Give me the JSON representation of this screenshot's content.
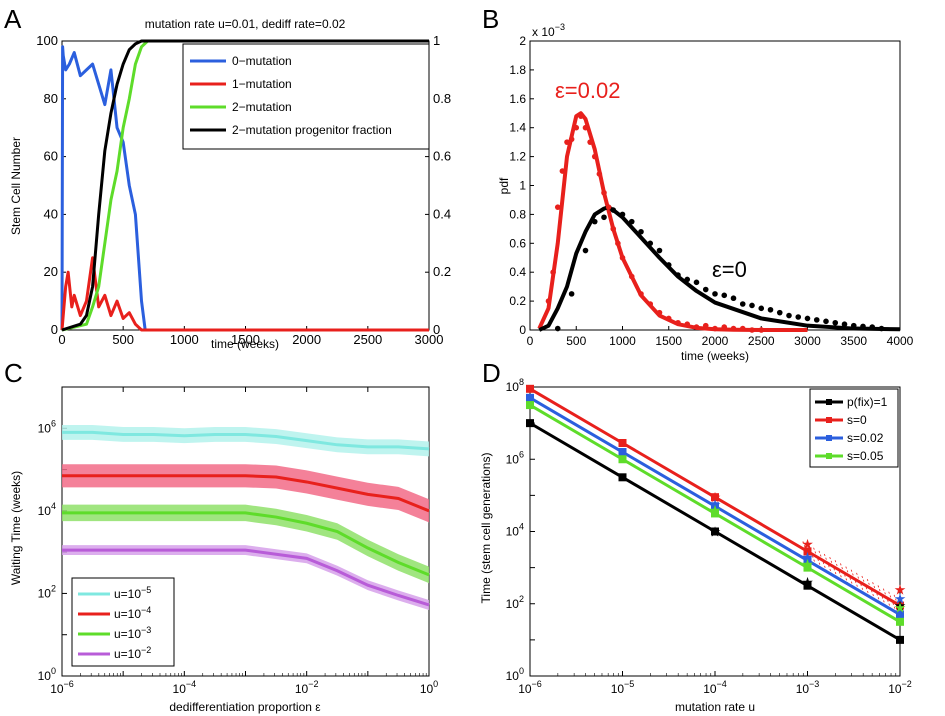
{
  "panels": {
    "A": {
      "label": "A",
      "title": "mutation rate u=0.01, dediff rate=0.02",
      "xlabel": "time (weeks)",
      "ylabel": "Stem Cell Number",
      "xticks": [
        "0",
        "500",
        "1000",
        "1500",
        "2000",
        "2500",
        "3000"
      ],
      "yticks_left": [
        "0",
        "20",
        "40",
        "60",
        "80",
        "100"
      ],
      "yticks_right": [
        "0",
        "0.2",
        "0.4",
        "0.6",
        "0.8",
        "1"
      ],
      "legend": [
        "0−mutation",
        "1−mutation",
        "2−mutation",
        "2−mutation progenitor fraction"
      ]
    },
    "B": {
      "label": "B",
      "xlabel": "time (weeks)",
      "ylabel": "pdf",
      "xticks": [
        "0",
        "500",
        "1000",
        "1500",
        "2000",
        "2500",
        "3000",
        "3500",
        "4000"
      ],
      "yticks": [
        "0",
        "0.2",
        "0.4",
        "0.6",
        "0.8",
        "1",
        "1.2",
        "1.4",
        "1.6",
        "1.8",
        "2"
      ],
      "yscale_base": "x 10",
      "yscale_exp": "−3",
      "annotation_red": "ε=0.02",
      "annotation_black": "ε=0"
    },
    "C": {
      "label": "C",
      "xlabel": "dedifferentiation proportion  ε",
      "ylabel": "Waiting Time (weeks)",
      "legend": [
        {
          "base": "u=10",
          "exp": "−5"
        },
        {
          "base": "u=10",
          "exp": "−4"
        },
        {
          "base": "u=10",
          "exp": "−3"
        },
        {
          "base": "u=10",
          "exp": "−2"
        }
      ]
    },
    "D": {
      "label": "D",
      "xlabel": "mutation rate u",
      "ylabel": "Time (stem cell generations)",
      "legend": [
        "p(fix)=1",
        "s=0",
        "s=0.02",
        "s=0.05"
      ]
    }
  },
  "colors": {
    "blue": "#2b5fde",
    "red": "#e8201c",
    "green": "#5edc2a",
    "black": "#000000",
    "cyan": "#7fe8e0",
    "purple": "#b85cd8"
  },
  "chart_data": [
    {
      "panel": "A",
      "type": "line",
      "title": "mutation rate u=0.01, dediff rate=0.02",
      "xlabel": "time (weeks)",
      "ylabel": "Stem Cell Number",
      "xlim": [
        0,
        3000
      ],
      "ylim": [
        0,
        100
      ],
      "y2lim": [
        0,
        1
      ],
      "series": [
        {
          "name": "0-mutation",
          "color": "blue",
          "x": [
            0,
            5,
            10,
            30,
            60,
            100,
            150,
            200,
            250,
            300,
            350,
            400,
            450,
            500,
            550,
            600,
            650,
            680,
            3000
          ],
          "y": [
            0,
            98,
            95,
            90,
            92,
            96,
            88,
            90,
            92,
            85,
            78,
            90,
            70,
            65,
            50,
            40,
            10,
            0,
            0
          ]
        },
        {
          "name": "1-mutation",
          "color": "red",
          "x": [
            0,
            10,
            30,
            50,
            80,
            100,
            150,
            200,
            250,
            300,
            350,
            400,
            450,
            500,
            550,
            600,
            650,
            3000
          ],
          "y": [
            0,
            5,
            15,
            20,
            8,
            12,
            5,
            10,
            25,
            8,
            12,
            5,
            10,
            4,
            6,
            2,
            0,
            0
          ]
        },
        {
          "name": "2-mutation",
          "color": "green",
          "x": [
            0,
            200,
            250,
            300,
            350,
            400,
            450,
            500,
            550,
            600,
            650,
            700,
            3000
          ],
          "y": [
            0,
            2,
            8,
            15,
            30,
            45,
            55,
            70,
            80,
            92,
            98,
            100,
            100
          ]
        },
        {
          "name": "2-mutation progenitor fraction",
          "color": "black",
          "axis": "right",
          "x": [
            0,
            150,
            200,
            250,
            300,
            350,
            400,
            450,
            500,
            550,
            600,
            650,
            3000
          ],
          "y": [
            0,
            0.02,
            0.05,
            0.15,
            0.4,
            0.62,
            0.75,
            0.85,
            0.92,
            0.97,
            0.99,
            1,
            1
          ]
        }
      ]
    },
    {
      "panel": "B",
      "type": "line",
      "xlabel": "time (weeks)",
      "ylabel": "pdf",
      "xlim": [
        0,
        4000
      ],
      "ylim": [
        0,
        0.002
      ],
      "series": [
        {
          "name": "ε=0.02",
          "color": "red",
          "x": [
            100,
            200,
            300,
            400,
            500,
            550,
            600,
            700,
            800,
            900,
            1000,
            1200,
            1400,
            1600,
            1800,
            2000,
            2200,
            2500,
            3000
          ],
          "y": [
            1e-05,
            0.00015,
            0.0006,
            0.0012,
            0.00148,
            0.0015,
            0.00146,
            0.00125,
            0.00095,
            0.0007,
            0.0005,
            0.00024,
            0.0001,
            4e-05,
            1.5e-05,
            5e-06,
            2e-06,
            0,
            0
          ]
        },
        {
          "name": "ε=0",
          "color": "black",
          "x": [
            100,
            200,
            300,
            400,
            500,
            600,
            700,
            800,
            850,
            900,
            1000,
            1200,
            1400,
            1600,
            1800,
            2000,
            2500,
            3000,
            3500,
            4000
          ],
          "y": [
            0,
            3e-05,
            0.00015,
            0.0003,
            0.00053,
            0.00068,
            0.0008,
            0.00084,
            0.00085,
            0.00083,
            0.00078,
            0.00064,
            0.0005,
            0.00037,
            0.00027,
            0.00019,
            8e-05,
            3e-05,
            1e-05,
            5e-06
          ]
        },
        {
          "name": "ε=0.02 (simulation points)",
          "color": "red",
          "marker": "dot",
          "x": [
            200,
            250,
            300,
            350,
            400,
            450,
            500,
            550,
            600,
            650,
            700,
            750,
            800,
            850,
            900,
            950,
            1000,
            1100,
            1200,
            1300,
            1400,
            1500,
            1600,
            1700,
            1800,
            1900,
            2000,
            2100,
            2200,
            2300,
            2400,
            2500
          ],
          "y": [
            0.0002,
            0.0004,
            0.00085,
            0.0011,
            0.0013,
            0.00132,
            0.0014,
            0.00148,
            0.0014,
            0.0013,
            0.0012,
            0.00108,
            0.00095,
            0.00085,
            0.0007,
            0.0006,
            0.0005,
            0.00037,
            0.00025,
            0.00018,
            0.00012,
            8e-05,
            5e-05,
            4e-05,
            2e-05,
            3e-05,
            1e-05,
            2e-05,
            1e-05,
            1e-05,
            0,
            0
          ]
        },
        {
          "name": "ε=0 (simulation points)",
          "color": "black",
          "marker": "dot",
          "x": [
            300,
            450,
            600,
            700,
            800,
            900,
            1000,
            1100,
            1200,
            1300,
            1400,
            1500,
            1600,
            1700,
            1800,
            1900,
            2000,
            2100,
            2200,
            2300,
            2400,
            2500,
            2600,
            2700,
            2800,
            2900,
            3000,
            3100,
            3200,
            3300,
            3400,
            3500,
            3600,
            3700,
            3800
          ],
          "y": [
            1e-05,
            0.00025,
            0.00055,
            0.00075,
            0.00078,
            0.00083,
            0.0008,
            0.00075,
            0.00068,
            0.0006,
            0.00055,
            0.00045,
            0.00038,
            0.00035,
            0.00033,
            0.00028,
            0.00025,
            0.00024,
            0.00022,
            0.00018,
            0.00017,
            0.00015,
            0.00014,
            0.00012,
            0.0001,
            9e-05,
            8e-05,
            7e-05,
            6e-05,
            5e-05,
            4e-05,
            3e-05,
            2.5e-05,
            2e-05,
            1e-05
          ]
        }
      ]
    },
    {
      "panel": "C",
      "type": "line",
      "xscale": "log",
      "yscale": "log",
      "xlabel": "dedifferentiation proportion  ε",
      "ylabel": "Waiting Time (weeks)",
      "xlim_log10": [
        -6,
        0
      ],
      "ylim_log10": [
        0,
        7
      ],
      "x_log10": [
        -6,
        -5.5,
        -5,
        -4.5,
        -4,
        -3.5,
        -3,
        -2.5,
        -2,
        -1.5,
        -1,
        -0.5,
        0
      ],
      "series": [
        {
          "name": "u=10^-5",
          "color": "cyan",
          "log10_y": [
            5.9,
            5.9,
            5.85,
            5.85,
            5.82,
            5.85,
            5.85,
            5.8,
            5.7,
            5.6,
            5.55,
            5.55,
            5.5
          ],
          "band": 0.18
        },
        {
          "name": "u=10^-4",
          "color": "red",
          "log10_y": [
            4.85,
            4.85,
            4.85,
            4.85,
            4.85,
            4.85,
            4.85,
            4.82,
            4.7,
            4.55,
            4.4,
            4.3,
            4.0
          ],
          "band": 0.28
        },
        {
          "name": "u=10^-3",
          "color": "green",
          "log10_y": [
            3.95,
            3.95,
            3.95,
            3.95,
            3.95,
            3.95,
            3.95,
            3.85,
            3.7,
            3.5,
            3.1,
            2.75,
            2.45
          ],
          "band": 0.2
        },
        {
          "name": "u=10^-2",
          "color": "purple",
          "log10_y": [
            3.05,
            3.05,
            3.05,
            3.05,
            3.05,
            3.05,
            3.05,
            2.95,
            2.85,
            2.55,
            2.2,
            1.95,
            1.72
          ],
          "band": 0.12
        }
      ]
    },
    {
      "panel": "D",
      "type": "line",
      "xscale": "log",
      "yscale": "log",
      "xlabel": "mutation rate u",
      "ylabel": "Time (stem cell generations)",
      "xlim_log10": [
        -6,
        -2
      ],
      "ylim_log10": [
        0,
        8
      ],
      "x_log10": [
        -6,
        -5,
        -4,
        -3,
        -2
      ],
      "series": [
        {
          "name": "p(fix)=1",
          "color": "black",
          "marker": "square",
          "log10_y": [
            7.0,
            5.5,
            4.0,
            2.5,
            1.0
          ]
        },
        {
          "name": "s=0",
          "color": "red",
          "marker": "square",
          "log10_y": [
            7.95,
            6.45,
            4.95,
            3.45,
            1.95
          ]
        },
        {
          "name": "s=0.02",
          "color": "blue",
          "marker": "square",
          "log10_y": [
            7.7,
            6.2,
            4.7,
            3.2,
            1.7
          ]
        },
        {
          "name": "s=0.05",
          "color": "green",
          "marker": "square",
          "log10_y": [
            7.5,
            6.0,
            4.5,
            3.0,
            1.5
          ]
        },
        {
          "name": "simulation p(fix)=1",
          "color": "black",
          "marker": "star",
          "x_log10": [
            -4,
            -3,
            -2
          ],
          "log10_y": [
            4.0,
            2.6,
            1.95
          ]
        },
        {
          "name": "simulation s=0",
          "color": "red",
          "marker": "star",
          "x_log10": [
            -4,
            -3,
            -2
          ],
          "log10_y": [
            4.95,
            3.65,
            2.4
          ]
        },
        {
          "name": "simulation s=0.02",
          "color": "blue",
          "marker": "star",
          "x_log10": [
            -4,
            -3,
            -2
          ],
          "log10_y": [
            4.75,
            3.3,
            2.15
          ]
        },
        {
          "name": "simulation s=0.05",
          "color": "green",
          "marker": "star",
          "x_log10": [
            -4,
            -3,
            -2
          ],
          "log10_y": [
            4.6,
            3.1,
            1.9
          ]
        }
      ]
    }
  ]
}
